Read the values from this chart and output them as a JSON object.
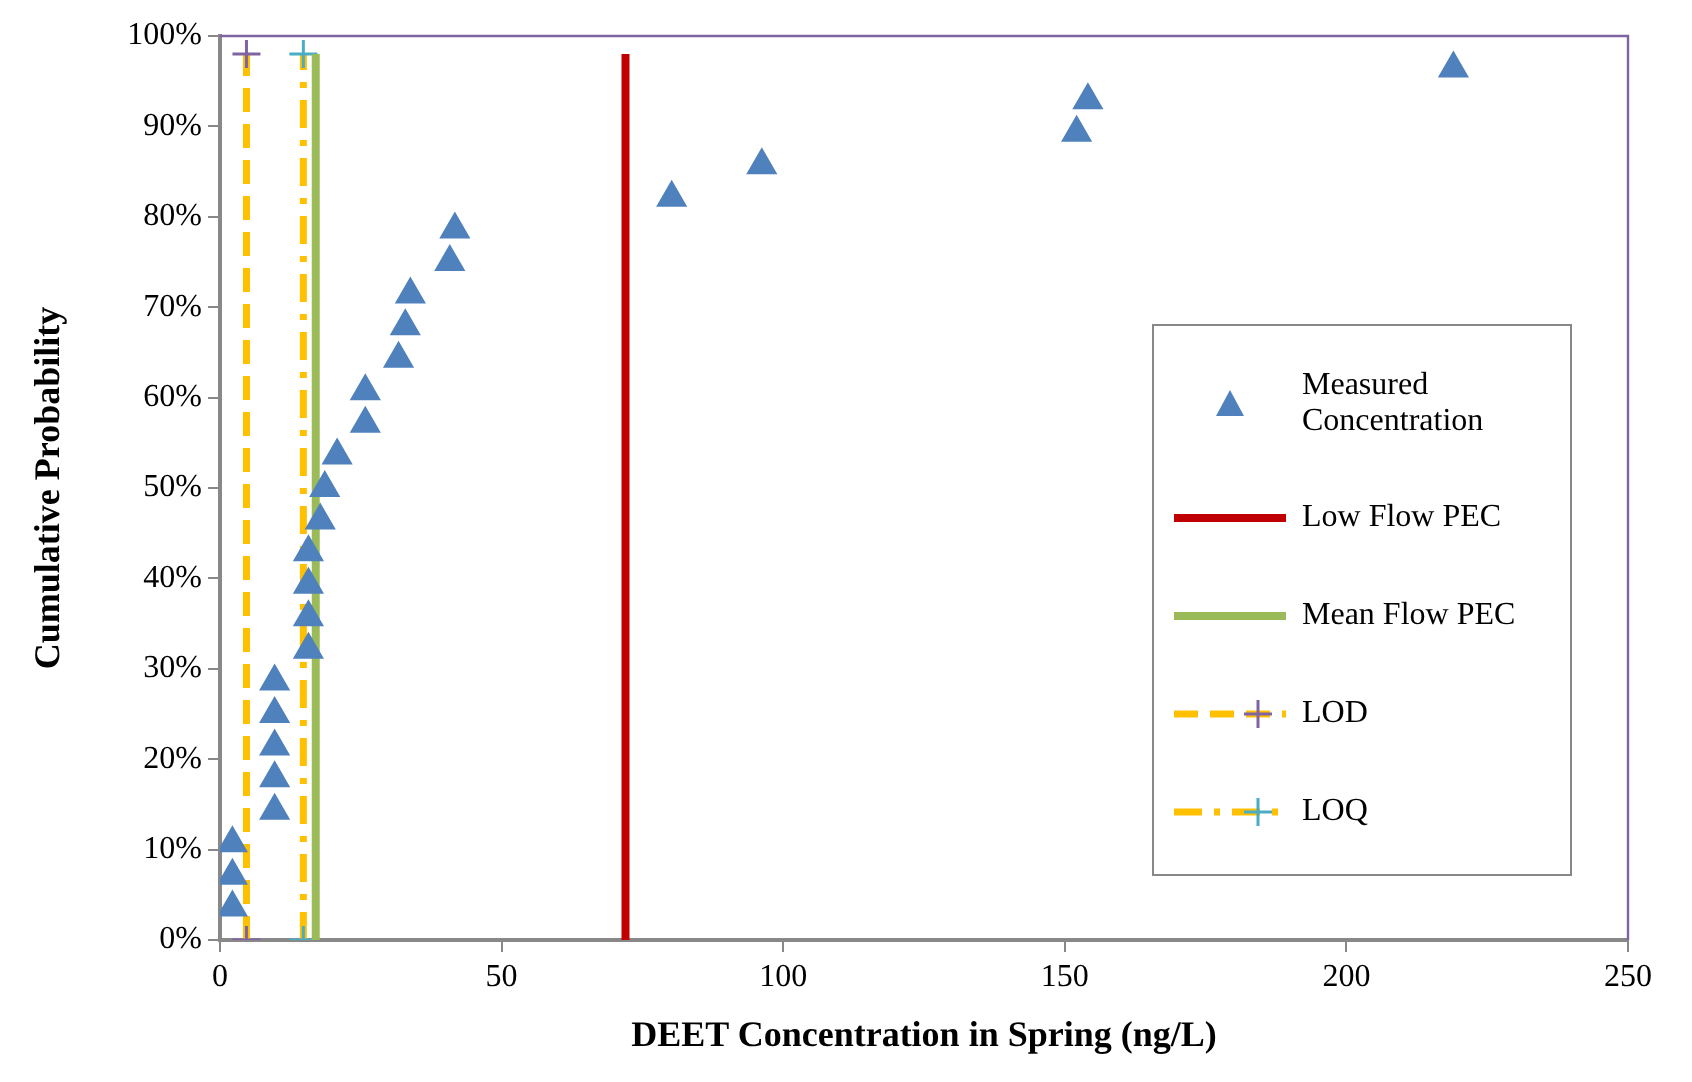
{
  "chart_data": {
    "type": "scatter",
    "xlabel": "DEET Concentration in Spring (ng/L)",
    "ylabel": "Cumulative Probability",
    "xlim": [
      0,
      250
    ],
    "xticks": [
      0,
      50,
      100,
      150,
      200,
      250
    ],
    "ylim": [
      0,
      100
    ],
    "yticks": [
      {
        "value": 0,
        "label": "0%"
      },
      {
        "value": 10,
        "label": "10%"
      },
      {
        "value": 20,
        "label": "20%"
      },
      {
        "value": 30,
        "label": "30%"
      },
      {
        "value": 40,
        "label": "40%"
      },
      {
        "value": 50,
        "label": "50%"
      },
      {
        "value": 60,
        "label": "60%"
      },
      {
        "value": 70,
        "label": "70%"
      },
      {
        "value": 80,
        "label": "80%"
      },
      {
        "value": 90,
        "label": "90%"
      },
      {
        "value": 100,
        "label": "100%"
      }
    ],
    "grid": false,
    "legend": "right",
    "series": [
      {
        "name": "Measured Concentration",
        "marker": "triangle",
        "color": "#4f81bd",
        "x": [
          2.2,
          2.2,
          2.2,
          9.7,
          9.7,
          9.7,
          9.7,
          9.7,
          15.7,
          15.7,
          15.7,
          15.7,
          17.8,
          18.6,
          20.8,
          25.8,
          25.8,
          31.7,
          32.9,
          33.8,
          40.8,
          41.7,
          80.2,
          96.2,
          152.1,
          154.1,
          219
        ],
        "values": [
          3.6,
          7.1,
          10.7,
          14.3,
          17.9,
          21.4,
          25,
          28.6,
          32.1,
          35.7,
          39.3,
          42.9,
          46.4,
          50,
          53.6,
          57.1,
          60.7,
          64.3,
          67.9,
          71.4,
          75,
          78.6,
          82.1,
          85.7,
          89.3,
          92.9,
          96.4
        ]
      },
      {
        "name": "Low Flow PEC",
        "type": "line",
        "marker": "none",
        "line_style": "solid",
        "color": "#c00000",
        "x": [
          72,
          72
        ],
        "values": [
          0,
          98
        ]
      },
      {
        "name": "Mean Flow PEC",
        "type": "line",
        "marker": "none",
        "line_style": "solid",
        "color": "#9bbb59",
        "x": [
          17,
          17
        ],
        "values": [
          0,
          98
        ]
      },
      {
        "name": "LOD",
        "type": "line",
        "marker": "cross",
        "line_style": "dashed",
        "color": "#ffc000",
        "colors": [
          "#8064a2",
          "#8064a2"
        ],
        "x": [
          4.7,
          4.7
        ],
        "values": [
          0,
          98
        ]
      },
      {
        "name": "LOQ",
        "type": "line",
        "marker": "cross",
        "line_style": "dotted",
        "color": "#ffc000",
        "colors": [
          "#4bacc6",
          "#4bacc6"
        ],
        "x": [
          14.8,
          14.8
        ],
        "values": [
          0,
          98
        ]
      }
    ]
  }
}
